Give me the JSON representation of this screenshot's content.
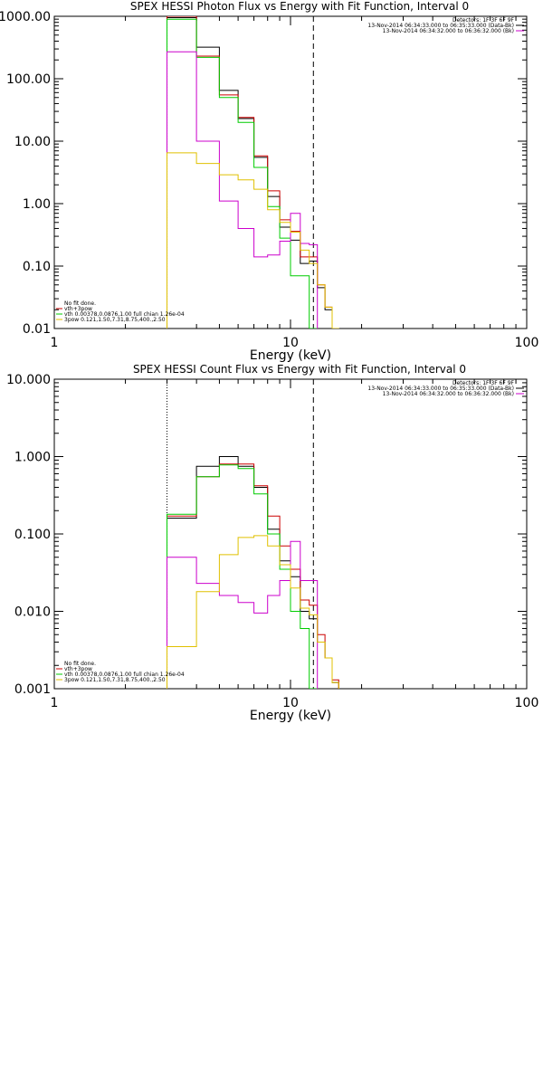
{
  "chart_data": [
    {
      "type": "line",
      "title": "SPEX HESSI Photon Flux vs Energy with Fit Function, Interval 0",
      "xlabel": "Energy (keV)",
      "ylabel": "",
      "xscale": "log",
      "yscale": "log",
      "xlim": [
        1,
        100
      ],
      "ylim": [
        0.01,
        1000
      ],
      "xtick_labels": [
        "1",
        "10",
        "100"
      ],
      "ytick_labels": [
        "0.01",
        "0.10",
        "1.00",
        "10.00",
        "100.00",
        "1000.00"
      ],
      "vlines": [
        {
          "x": 3,
          "style": "dotted"
        },
        {
          "x": 12.5,
          "style": "dashed"
        }
      ],
      "legend_top_right": [
        {
          "text": "Detectors: 1F 3F 6F 9F"
        },
        {
          "text": "13-Nov-2014 06:34:33.000 to 06:35:33.000 (Data-Bk)",
          "color": "#000000"
        },
        {
          "text": "13-Nov-2014 06:34:32.000 to 06:36:32.000 (Bk)",
          "color": "#cc00cc"
        }
      ],
      "legend_bottom_left": [
        {
          "text": "No fit done."
        },
        {
          "text": "vth+3pow",
          "color": "#cc0000"
        },
        {
          "text": "vth 0.00378,0.0876,1.00  full chian 1.26e-04",
          "color": "#00cc00"
        },
        {
          "text": "3pow 0.121,1.50,7.31,8.75,400.,2.50",
          "color": "#e0c000"
        }
      ],
      "bin_edges": [
        3,
        4,
        5,
        6,
        7,
        8,
        9,
        10,
        11,
        12,
        13,
        14,
        15,
        16
      ],
      "series": [
        {
          "color": "#000000",
          "values": [
            950,
            320,
            65,
            23,
            5.5,
            1.3,
            0.42,
            0.26,
            0.11,
            0.12,
            0.045,
            0.02,
            0.008
          ]
        },
        {
          "color": "#cc0000",
          "values": [
            1000,
            230,
            55,
            24,
            5.8,
            1.6,
            0.55,
            0.36,
            0.14,
            0.14,
            0.05,
            0.022,
            0.009
          ]
        },
        {
          "color": "#00cc00",
          "values": [
            900,
            220,
            50,
            20,
            3.8,
            0.9,
            0.28,
            0.07,
            0.07,
            0.01
          ]
        },
        {
          "color": "#cc00cc",
          "values": [
            270,
            10,
            1.1,
            0.4,
            0.14,
            0.15,
            0.25,
            0.7,
            0.23,
            0.22
          ]
        },
        {
          "color": "#e0c000",
          "values": [
            6.5,
            4.4,
            2.9,
            2.4,
            1.7,
            0.8,
            0.5,
            0.35,
            0.18,
            0.11,
            0.05,
            0.022,
            0.01
          ]
        }
      ]
    },
    {
      "type": "line",
      "title": "SPEX HESSI Count Flux vs Energy with Fit Function, Interval 0",
      "xlabel": "Energy (keV)",
      "ylabel": "",
      "xscale": "log",
      "yscale": "log",
      "xlim": [
        1,
        100
      ],
      "ylim": [
        0.001,
        10
      ],
      "xtick_labels": [
        "1",
        "10",
        "100"
      ],
      "ytick_labels": [
        "0.001",
        "0.010",
        "0.100",
        "1.000",
        "10.000"
      ],
      "vlines": [
        {
          "x": 3,
          "style": "dotted"
        },
        {
          "x": 12.5,
          "style": "dashed"
        }
      ],
      "legend_top_right": [
        {
          "text": "Detectors: 1F 3F 6F 9F"
        },
        {
          "text": "13-Nov-2014 06:34:33.000 to 06:35:33.000 (Data-Bk)",
          "color": "#000000"
        },
        {
          "text": "13-Nov-2014 06:34:32.000 to 06:36:32.000 (Bk)",
          "color": "#cc00cc"
        }
      ],
      "legend_bottom_left": [
        {
          "text": "No fit done."
        },
        {
          "text": "vth+3pow",
          "color": "#cc0000"
        },
        {
          "text": "vth 0.00378,0.0876,1.00  full chian 1.26e-04",
          "color": "#00cc00"
        },
        {
          "text": "3pow 0.121,1.50,7.31,8.75,400.,2.50",
          "color": "#e0c000"
        }
      ],
      "bin_edges": [
        3,
        4,
        5,
        6,
        7,
        8,
        9,
        10,
        11,
        12,
        13,
        14,
        15,
        16
      ],
      "series": [
        {
          "color": "#000000",
          "values": [
            0.16,
            0.75,
            1.0,
            0.75,
            0.4,
            0.115,
            0.045,
            0.028,
            0.01,
            0.008,
            0.004,
            0.0025,
            0.0012
          ]
        },
        {
          "color": "#cc0000",
          "values": [
            0.17,
            0.55,
            0.8,
            0.8,
            0.42,
            0.17,
            0.07,
            0.035,
            0.014,
            0.012,
            0.005,
            0.0025,
            0.0013
          ]
        },
        {
          "color": "#00cc00",
          "values": [
            0.18,
            0.55,
            0.78,
            0.7,
            0.33,
            0.1,
            0.035,
            0.01,
            0.006,
            0.001
          ]
        },
        {
          "color": "#cc00cc",
          "values": [
            0.05,
            0.023,
            0.016,
            0.013,
            0.0095,
            0.016,
            0.025,
            0.08,
            0.025,
            0.025
          ]
        },
        {
          "color": "#e0c000",
          "values": [
            0.0035,
            0.018,
            0.054,
            0.09,
            0.095,
            0.07,
            0.04,
            0.02,
            0.011,
            0.009,
            0.004,
            0.0025,
            0.0012
          ]
        }
      ]
    }
  ]
}
